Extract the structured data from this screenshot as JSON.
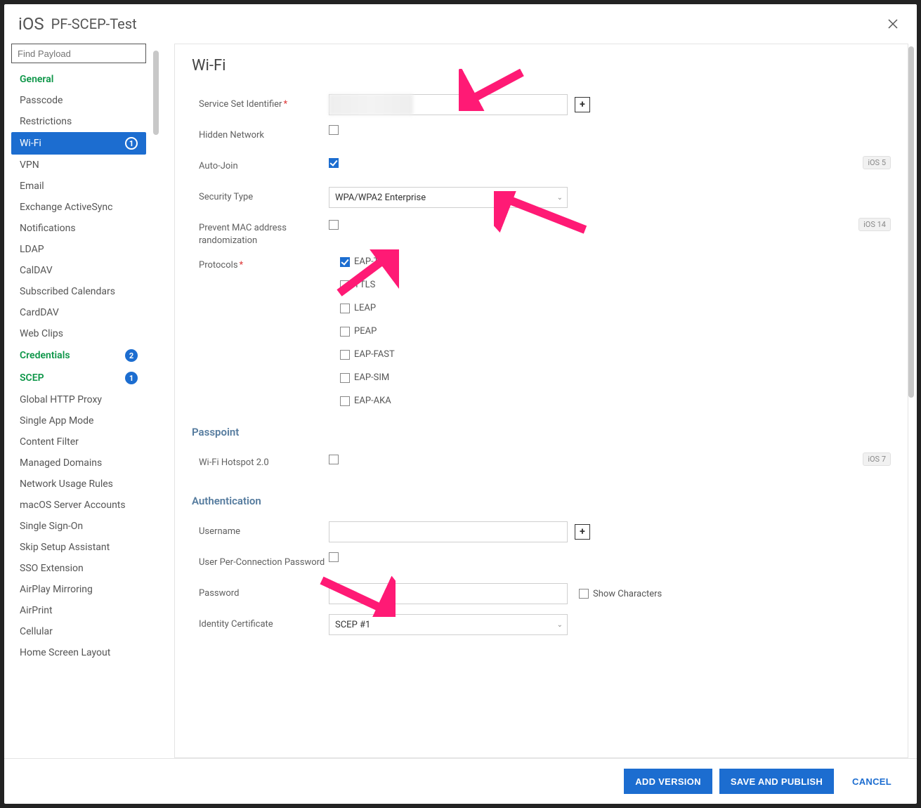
{
  "header": {
    "platform": "iOS",
    "profile_name": "PF-SCEP-Test"
  },
  "sidebar": {
    "find_placeholder": "Find Payload",
    "items": [
      {
        "label": "General",
        "style": "green"
      },
      {
        "label": "Passcode"
      },
      {
        "label": "Restrictions"
      },
      {
        "label": "Wi-Fi",
        "style": "active",
        "badge": "1"
      },
      {
        "label": "VPN"
      },
      {
        "label": "Email"
      },
      {
        "label": "Exchange ActiveSync"
      },
      {
        "label": "Notifications"
      },
      {
        "label": "LDAP"
      },
      {
        "label": "CalDAV"
      },
      {
        "label": "Subscribed Calendars"
      },
      {
        "label": "CardDAV"
      },
      {
        "label": "Web Clips"
      },
      {
        "label": "Credentials",
        "style": "green",
        "badge": "2",
        "badge_style": "blue"
      },
      {
        "label": "SCEP",
        "style": "green",
        "badge": "1",
        "badge_style": "blue"
      },
      {
        "label": "Global HTTP Proxy"
      },
      {
        "label": "Single App Mode"
      },
      {
        "label": "Content Filter"
      },
      {
        "label": "Managed Domains"
      },
      {
        "label": "Network Usage Rules"
      },
      {
        "label": "macOS Server Accounts"
      },
      {
        "label": "Single Sign-On"
      },
      {
        "label": "Skip Setup Assistant"
      },
      {
        "label": "SSO Extension"
      },
      {
        "label": "AirPlay Mirroring"
      },
      {
        "label": "AirPrint"
      },
      {
        "label": "Cellular"
      },
      {
        "label": "Home Screen Layout"
      }
    ]
  },
  "content": {
    "title": "Wi-Fi",
    "fields": {
      "ssid": {
        "label": "Service Set Identifier",
        "required": true,
        "value": ""
      },
      "hidden": {
        "label": "Hidden Network",
        "checked": false
      },
      "autojoin": {
        "label": "Auto-Join",
        "checked": true,
        "ios_badge": "iOS 5"
      },
      "security": {
        "label": "Security Type",
        "value": "WPA/WPA2 Enterprise"
      },
      "mac_random": {
        "label": "Prevent MAC address randomization",
        "checked": false,
        "ios_badge": "iOS 14"
      },
      "protocols": {
        "label": "Protocols",
        "required": true,
        "items": [
          {
            "label": "EAP-TLS",
            "checked": true
          },
          {
            "label": "TTLS",
            "checked": false
          },
          {
            "label": "LEAP",
            "checked": false
          },
          {
            "label": "PEAP",
            "checked": false
          },
          {
            "label": "EAP-FAST",
            "checked": false
          },
          {
            "label": "EAP-SIM",
            "checked": false
          },
          {
            "label": "EAP-AKA",
            "checked": false
          }
        ]
      }
    },
    "passpoint": {
      "title": "Passpoint",
      "hotspot": {
        "label": "Wi-Fi Hotspot 2.0",
        "checked": false,
        "ios_badge": "iOS 7"
      }
    },
    "auth": {
      "title": "Authentication",
      "username": {
        "label": "Username",
        "value": ""
      },
      "per_conn": {
        "label": "User Per-Connection Password",
        "checked": false
      },
      "password": {
        "label": "Password",
        "value": "",
        "show_label": "Show Characters"
      },
      "identity_cert": {
        "label": "Identity Certificate",
        "value": "SCEP #1"
      }
    }
  },
  "footer": {
    "add_version": "Add Version",
    "save_publish": "Save and Publish",
    "cancel": "Cancel"
  },
  "arrows": {
    "color": "#ff1a75"
  }
}
